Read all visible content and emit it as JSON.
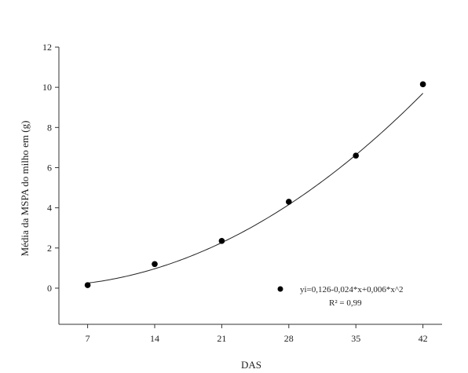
{
  "chart_data": {
    "type": "scatter",
    "xlabel": "DAS",
    "ylabel": "Média da MSPA do milho em (g)",
    "x": [
      7,
      14,
      21,
      28,
      35,
      42
    ],
    "y": [
      0.15,
      1.2,
      2.35,
      4.3,
      6.6,
      10.15
    ],
    "xlim": [
      4,
      44
    ],
    "ylim": [
      -1.8,
      12
    ],
    "x_ticks": [
      7,
      14,
      21,
      28,
      35,
      42
    ],
    "y_ticks": [
      0,
      2,
      4,
      6,
      8,
      10,
      12
    ],
    "trend": {
      "type": "quadratic",
      "coefficients": [
        0.126,
        -0.024,
        0.006
      ],
      "x_range": [
        7,
        42
      ]
    },
    "legend": {
      "position": "bottom-right",
      "equation": "yi=0,126-0,024*x+0,006*x^2",
      "r2": "R² = 0,99"
    },
    "colors": {
      "points": "#000000",
      "line": "#222222",
      "axis": "#333333"
    }
  }
}
